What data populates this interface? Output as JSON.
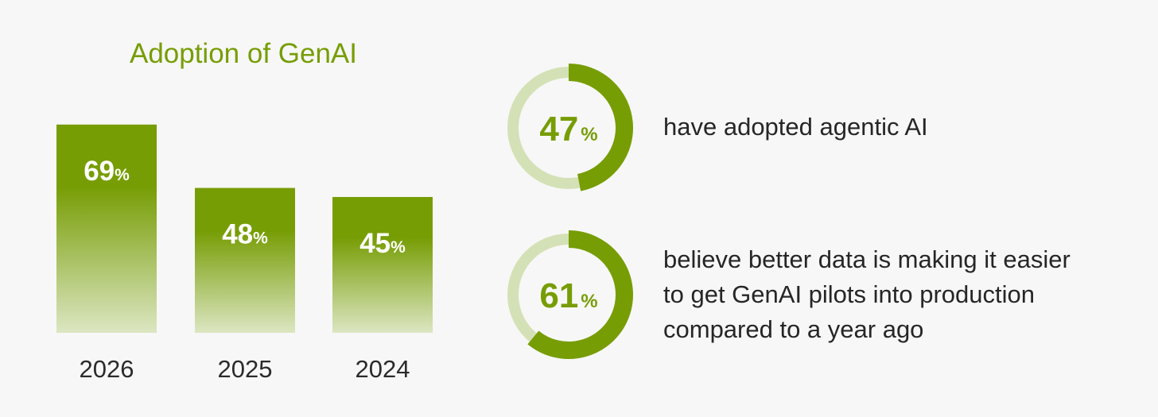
{
  "colors": {
    "accent": "#779d05",
    "bar_gradient_bottom": "#dce6c2",
    "donut_track": "#d4e1b6",
    "background": "#f7f7f7",
    "text": "#262626"
  },
  "chart_data": [
    {
      "type": "bar",
      "title": "Adoption of GenAI",
      "categories": [
        "2026",
        "2025",
        "2024"
      ],
      "values": [
        69,
        48,
        45
      ],
      "value_suffix": "%",
      "ylim": [
        0,
        100
      ],
      "grid": false
    },
    {
      "type": "pie",
      "style": "donut",
      "values": [
        47
      ],
      "value_suffix": "%",
      "description": "have adopted agentic AI"
    },
    {
      "type": "pie",
      "style": "donut",
      "values": [
        61
      ],
      "value_suffix": "%",
      "description": "believe better data is making it easier to get GenAI pilots into production compared to a year ago"
    }
  ],
  "stats": [
    {
      "lines": [
        "have adopted agentic AI"
      ]
    },
    {
      "lines": [
        "believe better data is making it easier",
        "to get GenAI pilots into production",
        "compared to a year ago"
      ]
    }
  ]
}
